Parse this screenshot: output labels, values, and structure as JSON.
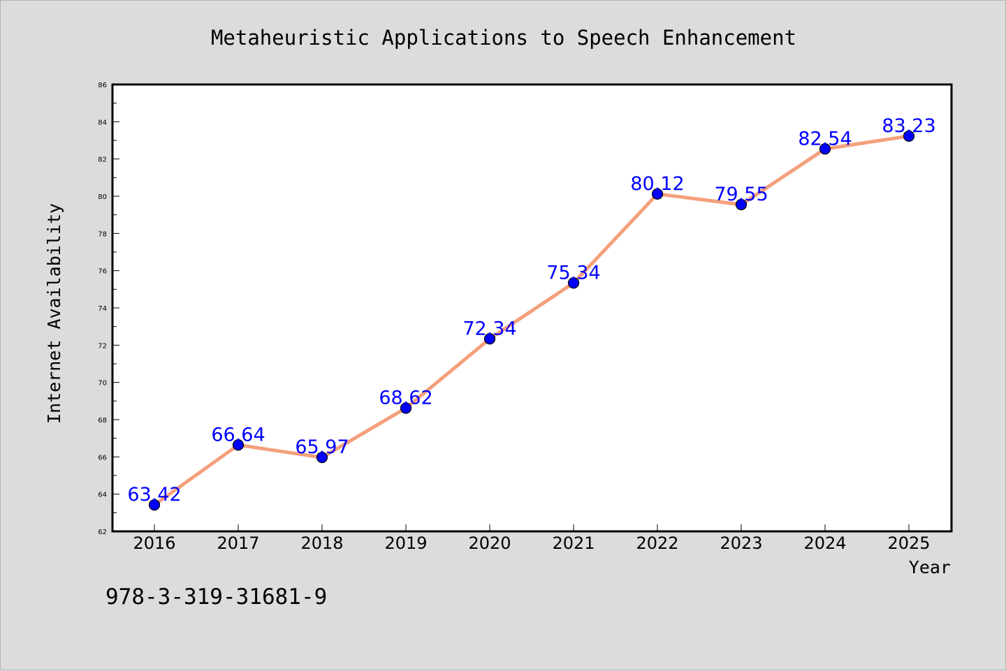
{
  "chart_data": {
    "type": "line",
    "title": "Metaheuristic Applications to Speech Enhancement",
    "xlabel": "Year",
    "ylabel": "Internet Availability",
    "categories": [
      "2016",
      "2017",
      "2018",
      "2019",
      "2020",
      "2021",
      "2022",
      "2023",
      "2024",
      "2025"
    ],
    "series": [
      {
        "values": [
          63.42,
          66.64,
          65.97,
          68.62,
          72.34,
          75.34,
          80.12,
          79.55,
          82.54,
          83.23
        ],
        "line_color": "#f4a07c",
        "marker_color": "#0000ff",
        "label_color": "#0000ff"
      }
    ],
    "data_labels": [
      "63.42",
      "66.64",
      "65.97",
      "68.62",
      "72.34",
      "75.34",
      "80.12",
      "79.55",
      "82.54",
      "83.23"
    ],
    "ylim": [
      62,
      86
    ],
    "yticks": [
      "62",
      "64",
      "66",
      "68",
      "70",
      "72",
      "74",
      "76",
      "78",
      "80",
      "82",
      "84",
      "86"
    ],
    "grid": false,
    "legend": "none"
  },
  "annotation": "978-3-319-31681-9",
  "colors": {
    "background": "#dcdcdc",
    "plot_area": "#ffffff",
    "axes": "#000000"
  }
}
